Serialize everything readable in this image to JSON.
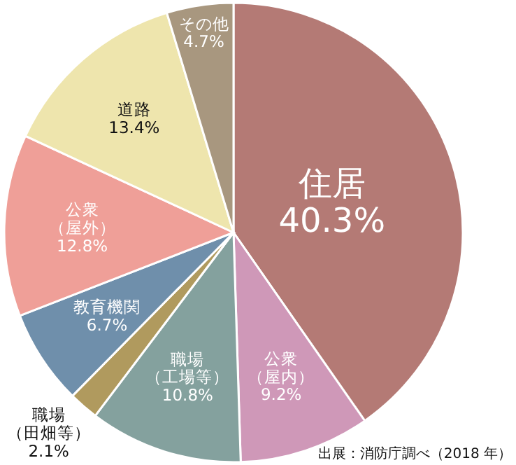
{
  "chart_data": {
    "type": "pie",
    "categories": [
      "住居",
      "公衆（屋内）",
      "職場（工場等）",
      "職場（田畑等）",
      "教育機関",
      "公衆（屋外）",
      "道路",
      "その他"
    ],
    "values": [
      40.3,
      9.2,
      10.8,
      2.1,
      6.7,
      12.8,
      13.4,
      4.7
    ],
    "colors": [
      "#b47a75",
      "#cf98b8",
      "#84a19e",
      "#b09a5e",
      "#6f8fab",
      "#ef9f98",
      "#eee5ad",
      "#a8977f"
    ],
    "value_labels": [
      "40.3%",
      "9.2%",
      "10.8%",
      "2.1%",
      "6.7%",
      "12.8%",
      "13.4%",
      "4.7%"
    ],
    "annotations": [
      "出展：消防庁調べ（2018 年）"
    ]
  }
}
